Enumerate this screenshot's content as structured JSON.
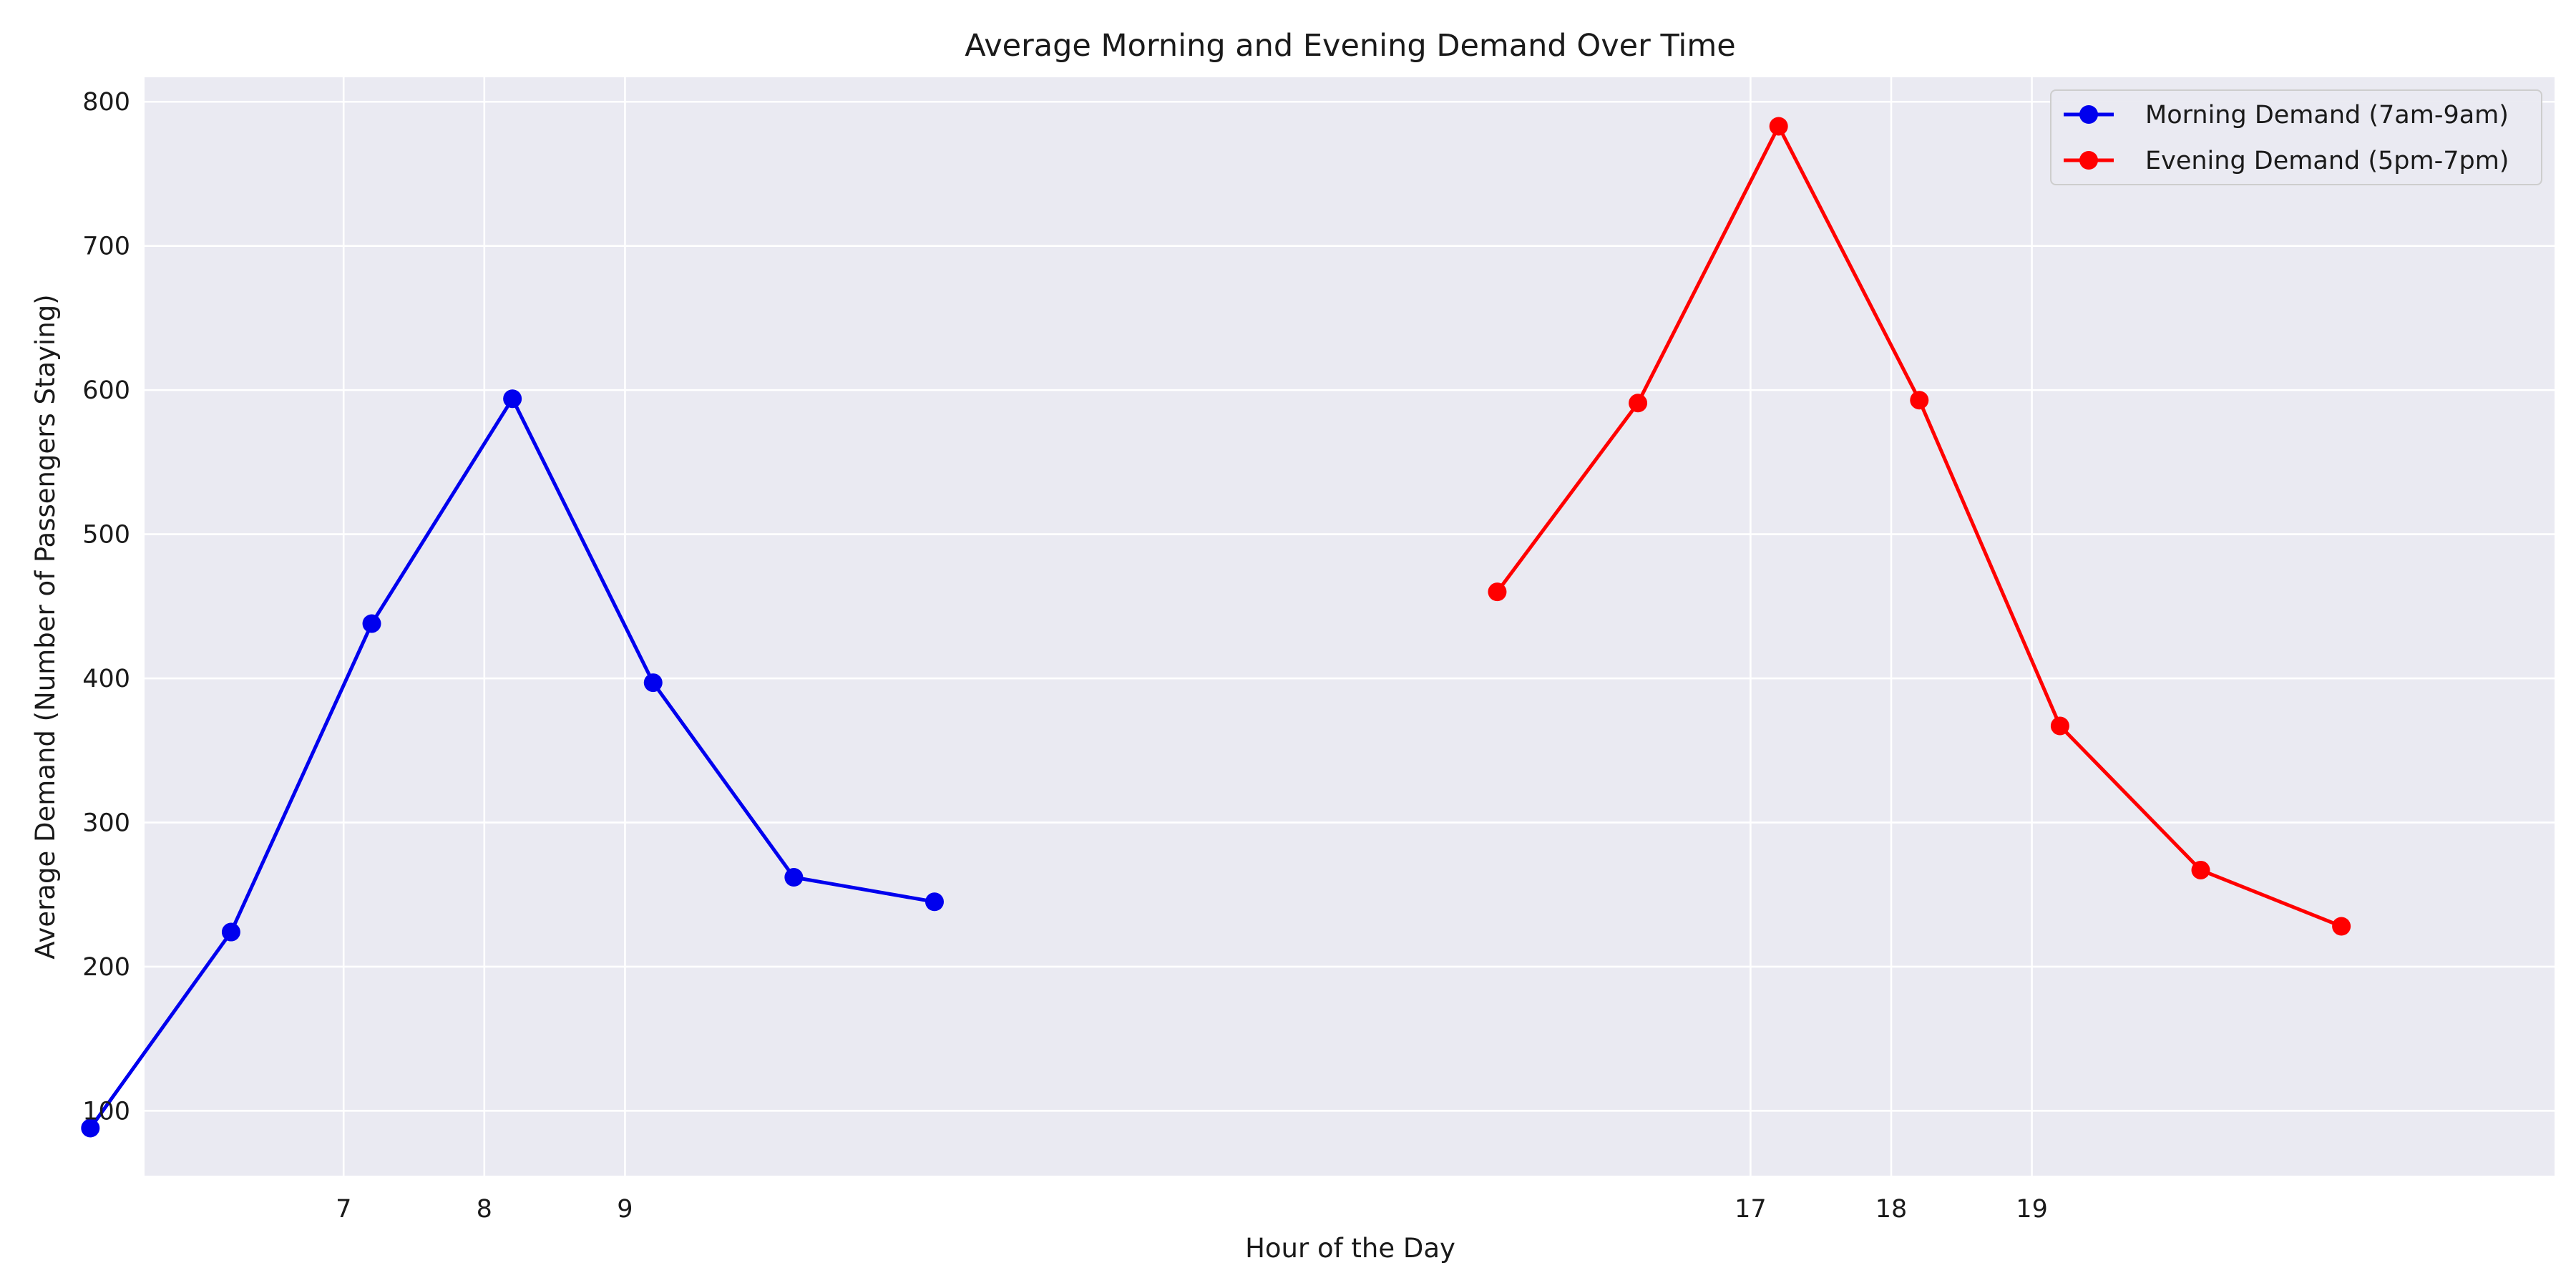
{
  "chart_data": {
    "type": "line",
    "title": "Average Morning and Evening Demand Over Time",
    "xlabel": "Hour of the Day",
    "ylabel": "Average Demand (Number of Passengers Staying)",
    "xlim": [
      5.585,
      22.715
    ],
    "ylim": [
      55,
      817
    ],
    "x_ticks": [
      7,
      8,
      9,
      17,
      18,
      19
    ],
    "y_ticks": [
      100,
      200,
      300,
      400,
      500,
      600,
      700,
      800
    ],
    "grid": true,
    "legend_position": "top-right",
    "series": [
      {
        "name": "Morning Demand (7am-9am)",
        "color": "#0000ee",
        "x": [
          5.2,
          6.2,
          7.2,
          8.2,
          9.2,
          10.2,
          11.2
        ],
        "y": [
          88,
          224,
          438,
          594,
          397,
          262,
          245
        ]
      },
      {
        "name": "Evening Demand (5pm-7pm)",
        "color": "#ff0000",
        "x": [
          15.2,
          16.2,
          17.2,
          18.2,
          19.2,
          20.2,
          21.2
        ],
        "y": [
          460,
          591,
          783,
          593,
          367,
          267,
          228
        ]
      }
    ]
  }
}
